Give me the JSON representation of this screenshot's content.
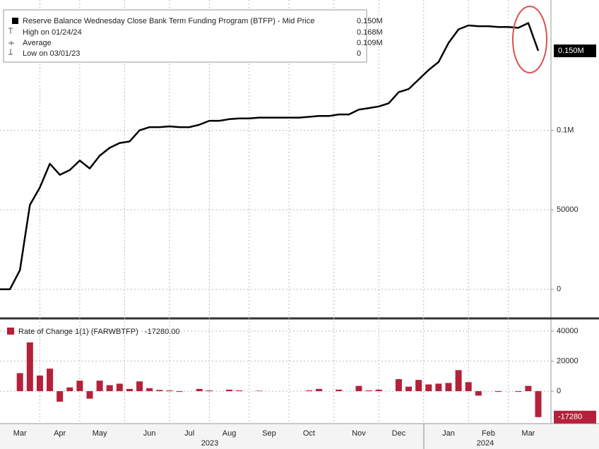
{
  "chart_data": [
    {
      "type": "line",
      "color": "#000000",
      "legend": [
        {
          "label": "Reserve Balance Wednesday Close Bank Term Funding Program (BTFP) - Mid Price",
          "value": "0.150M"
        },
        {
          "label": "High on 01/24/24",
          "value": "0.168M"
        },
        {
          "label": "Average",
          "value": "0.109M"
        },
        {
          "label": "Low on 03/01/23",
          "value": "0"
        }
      ],
      "values": [
        0,
        0,
        12000,
        53000,
        64000,
        79000,
        72000,
        75000,
        81000,
        76000,
        84000,
        89000,
        92000,
        93000,
        100000,
        102000,
        102000,
        102500,
        102000,
        102000,
        103500,
        106000,
        106000,
        107000,
        107500,
        107500,
        108000,
        108000,
        108000,
        108000,
        108000,
        108500,
        109000,
        109000,
        110000,
        110000,
        113000,
        114000,
        115000,
        117000,
        124000,
        126000,
        132000,
        138000,
        143000,
        155000,
        163500,
        166000,
        165500,
        165500,
        165000,
        165000,
        164500,
        167500,
        150000
      ],
      "ylim": [
        -17000,
        182000
      ],
      "yticks": [
        0,
        50000,
        {
          "value": 100000,
          "label": "0.1M"
        }
      ],
      "last_value": {
        "value": 150000,
        "label": "0.150M"
      },
      "grid": true
    },
    {
      "type": "bar",
      "color": "#b5213a",
      "series_name": "Rate of Change 1(1) (FARWBTFP)",
      "legend_value": "-17280.00",
      "categories": [
        null,
        null,
        "Mar",
        null,
        null,
        null,
        "Apr",
        null,
        null,
        null,
        "May",
        null,
        null,
        null,
        null,
        "Jun",
        null,
        null,
        null,
        "Jul",
        null,
        null,
        null,
        "Aug",
        null,
        null,
        null,
        "Sep",
        null,
        null,
        null,
        "Oct",
        null,
        null,
        null,
        null,
        "Nov",
        null,
        null,
        null,
        "Dec",
        null,
        null,
        null,
        null,
        "Jan",
        null,
        null,
        null,
        "Feb",
        null,
        null,
        null,
        "Mar",
        null
      ],
      "values": [
        0,
        0,
        12000,
        32500,
        10400,
        15000,
        -7000,
        2500,
        7000,
        -5000,
        7000,
        4000,
        5000,
        1500,
        6500,
        2000,
        800,
        500,
        -500,
        0,
        1500,
        500,
        0,
        1000,
        500,
        0,
        300,
        0,
        0,
        0,
        0,
        500,
        1500,
        0,
        1000,
        0,
        3500,
        500,
        1000,
        0,
        8000,
        3000,
        7500,
        4500,
        5000,
        5500,
        14000,
        6000,
        -3000,
        0,
        -500,
        0,
        -500,
        3500,
        -17280
      ],
      "ylim": [
        -21600,
        46600
      ],
      "yticks": [
        0,
        20000,
        40000
      ],
      "last_value": {
        "value": -17280,
        "label": "-17280"
      },
      "x_groups": [
        "2023",
        "2024"
      ],
      "grid": true
    }
  ]
}
